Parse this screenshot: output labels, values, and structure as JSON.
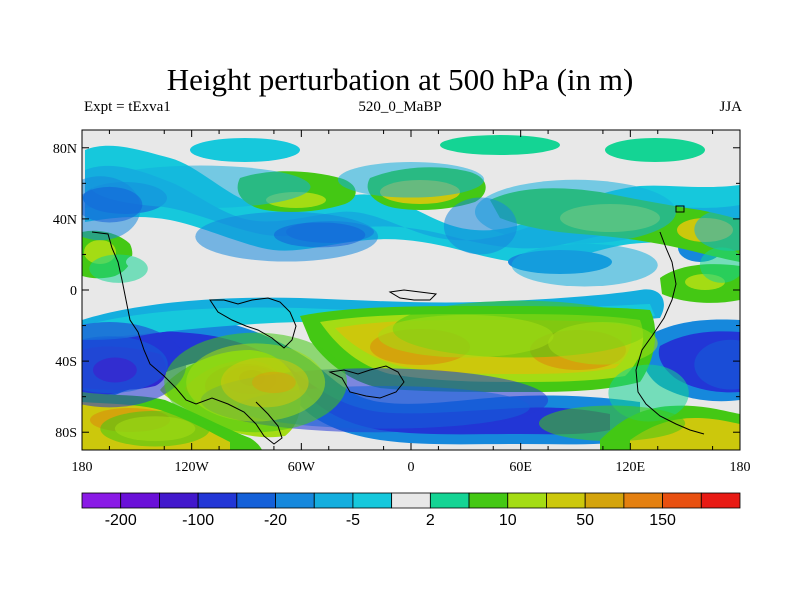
{
  "chart_data": {
    "type": "heatmap",
    "title": "Height perturbation at 500 hPa (in m)",
    "subtitle_left": "Expt = tExva1",
    "subtitle_center": "520_0_MaBP",
    "subtitle_right": "JJA",
    "x_ticks": [
      "180",
      "120W",
      "60W",
      "0",
      "60E",
      "120E",
      "180"
    ],
    "y_ticks": [
      "80N",
      "40N",
      "0",
      "40S",
      "80S"
    ],
    "xlim": [
      -180,
      180
    ],
    "ylim": [
      -90,
      90
    ],
    "colorbar": {
      "colors": [
        "#8a1ae6",
        "#6a10d8",
        "#4218cc",
        "#2236d6",
        "#1460d8",
        "#1688dc",
        "#14aede",
        "#16c8dc",
        "#e8e8e8",
        "#14d494",
        "#44c814",
        "#a4dc14",
        "#ccc80c",
        "#d4a40c",
        "#e48010",
        "#e85010",
        "#e81a14"
      ],
      "labels": [
        {
          "text": "-200",
          "boundary": 1
        },
        {
          "text": "-100",
          "boundary": 3
        },
        {
          "text": "-20",
          "boundary": 5
        },
        {
          "text": "-5",
          "boundary": 7
        },
        {
          "text": "2",
          "boundary": 9
        },
        {
          "text": "10",
          "boundary": 11
        },
        {
          "text": "50",
          "boundary": 13
        },
        {
          "text": "150",
          "boundary": 15
        }
      ]
    },
    "regions": [
      {
        "level": 6,
        "lon": -115,
        "lat": 58,
        "rlon": 60,
        "rlat": 12
      },
      {
        "level": 6,
        "lon": 0,
        "lat": 62,
        "rlon": 40,
        "rlat": 10
      },
      {
        "level": 6,
        "lon": 90,
        "lat": 44,
        "rlon": 55,
        "rlat": 18
      },
      {
        "level": 6,
        "lon": 95,
        "lat": 14,
        "rlon": 40,
        "rlat": 12
      },
      {
        "level": 6,
        "lon": 175,
        "lat": 34,
        "rlon": 20,
        "rlat": 12
      },
      {
        "level": 5,
        "lon": -170,
        "lat": 46,
        "rlon": 22,
        "rlat": 18
      },
      {
        "level": 5,
        "lon": -68,
        "lat": 30,
        "rlon": 50,
        "rlat": 14
      },
      {
        "level": 5,
        "lon": 38,
        "lat": 36,
        "rlon": 20,
        "rlat": 16
      },
      {
        "level": 4,
        "lon": -165,
        "lat": 48,
        "rlon": 18,
        "rlat": 10
      },
      {
        "level": 4,
        "lon": -50,
        "lat": 31,
        "rlon": 25,
        "rlat": 7
      },
      {
        "level": 3,
        "lon": -165,
        "lat": -42,
        "rlon": 42,
        "rlat": 24
      },
      {
        "level": 3,
        "lon": -20,
        "lat": -62,
        "rlon": 95,
        "rlat": 18
      },
      {
        "level": 4,
        "lon": -165,
        "lat": -42,
        "rlon": 32,
        "rlat": 16
      },
      {
        "level": 4,
        "lon": -15,
        "lat": -66,
        "rlon": 80,
        "rlat": 12
      },
      {
        "level": 4,
        "lon": 175,
        "lat": -42,
        "rlon": 20,
        "rlat": 14
      },
      {
        "level": 2,
        "lon": -162,
        "lat": -45,
        "rlon": 12,
        "rlat": 7
      },
      {
        "level": 9,
        "lon": -160,
        "lat": 12,
        "rlon": 16,
        "rlat": 8
      },
      {
        "level": 9,
        "lon": 170,
        "lat": 14,
        "rlon": 12,
        "rlat": 10
      },
      {
        "level": 9,
        "lon": 130,
        "lat": -58,
        "rlon": 22,
        "rlat": 16
      },
      {
        "level": 10,
        "lon": 60,
        "lat": -22,
        "rlon": 70,
        "rlat": 16
      },
      {
        "level": 10,
        "lon": -85,
        "lat": -52,
        "rlon": 50,
        "rlat": 28
      },
      {
        "level": 10,
        "lon": -140,
        "lat": -78,
        "rlon": 30,
        "rlat": 10
      },
      {
        "level": 10,
        "lon": 110,
        "lat": -75,
        "rlon": 40,
        "rlat": 10
      },
      {
        "level": 11,
        "lon": 30,
        "lat": -26,
        "rlon": 48,
        "rlat": 12
      },
      {
        "level": 11,
        "lon": 105,
        "lat": -30,
        "rlon": 30,
        "rlat": 12
      },
      {
        "level": 11,
        "lon": -85,
        "lat": -52,
        "rlon": 38,
        "rlat": 22
      },
      {
        "level": 11,
        "lon": -140,
        "lat": -78,
        "rlon": 22,
        "rlat": 7
      },
      {
        "level": 12,
        "lon": -80,
        "lat": -52,
        "rlon": 24,
        "rlat": 14
      },
      {
        "level": 13,
        "lon": -75,
        "lat": -52,
        "rlon": 12,
        "rlat": 6
      }
    ]
  }
}
